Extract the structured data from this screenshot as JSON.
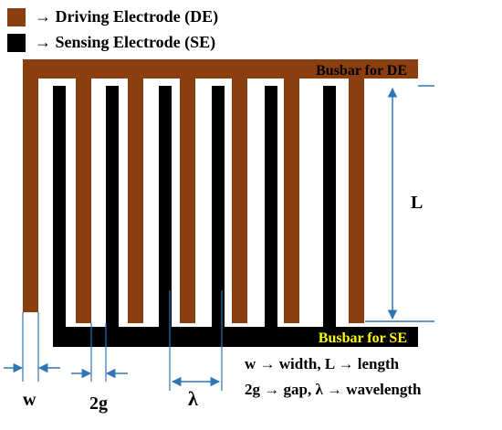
{
  "legend": [
    {
      "label": "→ Driving Electrode (DE)",
      "color": "#8B3E0F",
      "icon": "brown-square-swatch"
    },
    {
      "label": "→ Sensing Electrode (SE)",
      "color": "#000000",
      "icon": "black-square-swatch"
    }
  ],
  "labels": {
    "busbar_de": "Busbar for DE",
    "busbar_se": "Busbar for SE",
    "length": "L",
    "width": "w",
    "gap": "2g",
    "wavelength": "λ",
    "legend_line1": "w → width, L → length",
    "legend_line2": "2g → gap, λ → wavelength"
  },
  "colors": {
    "de": "#8B3E0F",
    "se": "#000000",
    "dimension": "#2E75B6",
    "se_busbar_text": "#FFFF00",
    "de_busbar_text": "#000000"
  }
}
